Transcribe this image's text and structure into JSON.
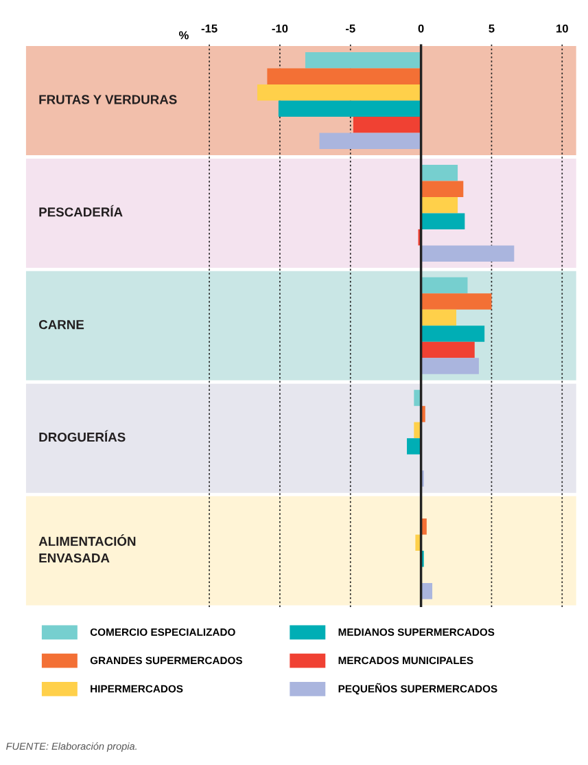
{
  "chart_data": {
    "type": "bar",
    "orientation": "horizontal",
    "categories": [
      "FRUTAS Y VERDURAS",
      "PESCADERÍA",
      "CARNE",
      "DROGUERÍAS",
      "ALIMENTACIÓN\nENVASADA"
    ],
    "series": [
      {
        "name": "COMERCIO ESPECIALIZADO",
        "color": "#76cfcf",
        "values": [
          -8.2,
          2.6,
          3.3,
          -0.5,
          0
        ]
      },
      {
        "name": "GRANDES SUPERMERCADOS",
        "color": "#f37035",
        "values": [
          -10.9,
          3.0,
          5.0,
          0.3,
          0.4
        ]
      },
      {
        "name": "HIPERMERCADOS",
        "color": "#ffd04a",
        "values": [
          -11.6,
          2.6,
          2.5,
          -0.5,
          -0.4
        ]
      },
      {
        "name": "MEDIANOS SUPERMERCADOS",
        "color": "#00aeb5",
        "values": [
          -10.1,
          3.1,
          4.5,
          -1.0,
          0.2
        ]
      },
      {
        "name": "MERCADOS MUNICIPALES",
        "color": "#f04133",
        "values": [
          -4.8,
          -0.2,
          3.8,
          0,
          0
        ]
      },
      {
        "name": "PEQUEÑOS SUPERMERCADOS",
        "color": "#aab5de",
        "values": [
          -7.2,
          6.6,
          4.1,
          0.2,
          0.8
        ]
      }
    ],
    "xlabel": "%",
    "xlim": [
      -28,
      11
    ],
    "xticks": [
      -15,
      -10,
      -5,
      0,
      5,
      10
    ],
    "grid": "x",
    "legend": "bottom",
    "ref_lines": [
      {
        "axis": "x",
        "value": 0,
        "color": "#222222"
      }
    ],
    "bands": [
      {
        "axis": "y",
        "from": "FRUTAS Y VERDURAS",
        "to": "FRUTAS Y VERDURAS",
        "color": "#f2bfab"
      },
      {
        "axis": "y",
        "from": "PESCADERÍA",
        "to": "PESCADERÍA",
        "color": "#f4e3ef"
      },
      {
        "axis": "y",
        "from": "CARNE",
        "to": "CARNE",
        "color": "#c9e6e5"
      },
      {
        "axis": "y",
        "from": "DROGUERÍAS",
        "to": "DROGUERÍAS",
        "color": "#e6e6ee"
      },
      {
        "axis": "y",
        "from": "ALIMENTACIÓN\nENVASADA",
        "to": "ALIMENTACIÓN\nENVASADA",
        "color": "#fff4d6"
      }
    ],
    "annotations": [
      "FUENTE: Elaboración propia."
    ]
  }
}
